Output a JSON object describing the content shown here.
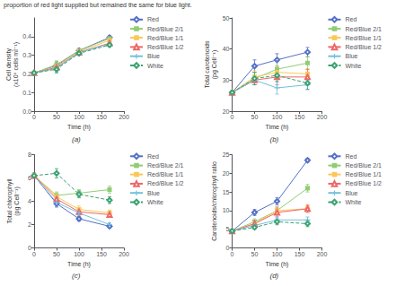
{
  "chart_data": [
    {
      "type": "line",
      "annotation": "proportion of red light supplied but remained the same for blue light.",
      "subtitle": "(a)",
      "xlabel": "Time (h)",
      "ylabel": "Cell density\n(x10⁶ cells ml⁻¹)",
      "x": [
        0,
        50,
        100,
        168
      ],
      "xlim": [
        0,
        200
      ],
      "xticks": [
        0,
        50,
        100,
        150,
        200
      ],
      "ylim": [
        0,
        0.5
      ],
      "yticks": [
        {
          "value": 0,
          "label": "0.0"
        },
        0.1,
        0.2,
        0.3,
        0.4
      ],
      "grid": false,
      "legend": "right",
      "series": [
        {
          "name": "Red",
          "values": [
            0.205,
            0.245,
            0.325,
            0.395
          ],
          "errors": [
            0.005,
            0.02,
            0.01,
            0.01
          ],
          "marker": "diamond-open",
          "line_style": "solid"
        },
        {
          "name": "Red/Blue 2/1",
          "values": [
            0.205,
            0.25,
            0.325,
            0.39
          ],
          "errors": [
            0.005,
            0.02,
            0.01,
            0.012
          ],
          "marker": "square",
          "line_style": "solid"
        },
        {
          "name": "Red/Blue 1/1",
          "values": [
            0.205,
            0.24,
            0.32,
            0.38
          ],
          "errors": [
            0.005,
            0.02,
            0.01,
            0.01
          ],
          "marker": "square",
          "line_style": "solid"
        },
        {
          "name": "Red/Blue 1/2",
          "values": [
            0.205,
            0.235,
            0.315,
            0.365
          ],
          "errors": [
            0.005,
            0.02,
            0.01,
            0.01
          ],
          "marker": "triangle-open",
          "line_style": "solid"
        },
        {
          "name": "Blue",
          "values": [
            0.205,
            0.23,
            0.315,
            0.36
          ],
          "errors": [
            0.005,
            0.02,
            0.01,
            0.01
          ],
          "marker": "plus",
          "line_style": "solid"
        },
        {
          "name": "White",
          "values": [
            0.205,
            0.225,
            0.31,
            0.355
          ],
          "errors": [
            0.005,
            0.02,
            0.01,
            0.01
          ],
          "marker": "diamond-open",
          "line_style": "dashed"
        }
      ]
    },
    {
      "type": "line",
      "subtitle": "(b)",
      "xlabel": "Time (h)",
      "ylabel": "Total carotenoids\n(pg Cell⁻¹)",
      "x": [
        0,
        50,
        100,
        168
      ],
      "xlim": [
        0,
        200
      ],
      "xticks": [
        0,
        50,
        100,
        150,
        200
      ],
      "ylim": [
        20,
        50
      ],
      "yticks": [
        20,
        30,
        40,
        50
      ],
      "grid": false,
      "legend": "right",
      "series": [
        {
          "name": "Red",
          "values": [
            26,
            34.5,
            36.5,
            39.0
          ],
          "errors": [
            0.5,
            2.0,
            2.0,
            1.5
          ],
          "marker": "diamond-open",
          "line_style": "solid"
        },
        {
          "name": "Red/Blue 2/1",
          "values": [
            26,
            30.5,
            33.5,
            35.5
          ],
          "errors": [
            0.5,
            2.0,
            2.5,
            2.0
          ],
          "marker": "square",
          "line_style": "solid"
        },
        {
          "name": "Red/Blue 1/1",
          "values": [
            26,
            31.0,
            32.5,
            32.0
          ],
          "errors": [
            0.5,
            2.0,
            2.0,
            1.5
          ],
          "marker": "square",
          "line_style": "solid"
        },
        {
          "name": "Red/Blue 1/2",
          "values": [
            26,
            30.0,
            31.0,
            31.0
          ],
          "errors": [
            0.5,
            1.5,
            2.5,
            2.5
          ],
          "marker": "triangle-open",
          "line_style": "solid"
        },
        {
          "name": "Blue",
          "values": [
            26,
            30.0,
            27.5,
            28.5
          ],
          "errors": [
            0.5,
            1.5,
            2.0,
            1.5
          ],
          "marker": "plus",
          "line_style": "solid"
        },
        {
          "name": "White",
          "values": [
            26,
            30.5,
            31.5,
            29.0
          ],
          "errors": [
            0.5,
            2.0,
            2.0,
            2.0
          ],
          "marker": "diamond-open",
          "line_style": "dashed"
        }
      ]
    },
    {
      "type": "line",
      "subtitle": "(c)",
      "xlabel": "Time (h)",
      "ylabel": "Total chlorophyll\n(pg Cell⁻¹)",
      "x": [
        0,
        50,
        100,
        168
      ],
      "xlim": [
        0,
        200
      ],
      "xticks": [
        0,
        50,
        100,
        150,
        200
      ],
      "ylim": [
        0,
        8
      ],
      "yticks": [
        0,
        2,
        4,
        6,
        8
      ],
      "grid": false,
      "legend": "right",
      "series": [
        {
          "name": "Red",
          "values": [
            6.2,
            3.8,
            2.5,
            1.85
          ],
          "errors": [
            0.2,
            0.3,
            0.2,
            0.15
          ],
          "marker": "diamond-open",
          "line_style": "solid"
        },
        {
          "name": "Red/Blue 2/1",
          "values": [
            6.2,
            4.5,
            4.7,
            5.0
          ],
          "errors": [
            0.2,
            0.3,
            0.3,
            0.3
          ],
          "marker": "square",
          "line_style": "solid"
        },
        {
          "name": "Red/Blue 1/1",
          "values": [
            6.2,
            4.4,
            3.3,
            3.0
          ],
          "errors": [
            0.2,
            0.3,
            0.3,
            0.25
          ],
          "marker": "square",
          "line_style": "solid"
        },
        {
          "name": "Red/Blue 1/2",
          "values": [
            6.2,
            4.2,
            3.1,
            2.85
          ],
          "errors": [
            0.2,
            0.25,
            0.2,
            0.2
          ],
          "marker": "triangle-open",
          "line_style": "solid"
        },
        {
          "name": "Blue",
          "values": [
            6.2,
            3.9,
            3.0,
            2.0
          ],
          "errors": [
            0.2,
            0.3,
            0.2,
            0.15
          ],
          "marker": "plus",
          "line_style": "solid"
        },
        {
          "name": "White",
          "values": [
            6.2,
            6.4,
            4.6,
            4.1
          ],
          "errors": [
            0.2,
            0.4,
            0.3,
            0.3
          ],
          "marker": "diamond-open",
          "line_style": "dashed"
        }
      ]
    },
    {
      "type": "line",
      "subtitle": "(d)",
      "xlabel": "Time (h)",
      "ylabel": "Carotenoids/chlorophyll ratio",
      "x": [
        0,
        50,
        100,
        168
      ],
      "xlim": [
        0,
        200
      ],
      "xticks": [
        0,
        50,
        100,
        150,
        200
      ],
      "ylim": [
        0,
        25
      ],
      "yticks": [
        0,
        5,
        10,
        15,
        20,
        25
      ],
      "grid": false,
      "legend": "right",
      "series": [
        {
          "name": "Red",
          "values": [
            4.5,
            9.5,
            12.5,
            23.5
          ],
          "errors": [
            0.3,
            0.8,
            1.0,
            0.5
          ],
          "marker": "diamond-open",
          "line_style": "solid"
        },
        {
          "name": "Red/Blue 2/1",
          "values": [
            4.5,
            7.0,
            10.0,
            16.0
          ],
          "errors": [
            0.3,
            0.8,
            1.0,
            1.0
          ],
          "marker": "square",
          "line_style": "solid"
        },
        {
          "name": "Red/Blue 1/1",
          "values": [
            4.5,
            6.5,
            10.0,
            10.5
          ],
          "errors": [
            0.3,
            0.7,
            1.0,
            0.8
          ],
          "marker": "square",
          "line_style": "solid"
        },
        {
          "name": "Red/Blue 1/2",
          "values": [
            4.5,
            6.5,
            9.5,
            10.5
          ],
          "errors": [
            0.3,
            0.7,
            1.2,
            1.0
          ],
          "marker": "triangle-open",
          "line_style": "solid"
        },
        {
          "name": "Blue",
          "values": [
            4.5,
            6.0,
            7.5,
            7.5
          ],
          "errors": [
            0.3,
            0.6,
            0.8,
            0.8
          ],
          "marker": "plus",
          "line_style": "solid"
        },
        {
          "name": "White",
          "values": [
            4.5,
            5.5,
            7.0,
            6.5
          ],
          "errors": [
            0.3,
            0.5,
            0.8,
            0.8
          ],
          "marker": "diamond-open",
          "line_style": "dashed"
        }
      ]
    }
  ]
}
